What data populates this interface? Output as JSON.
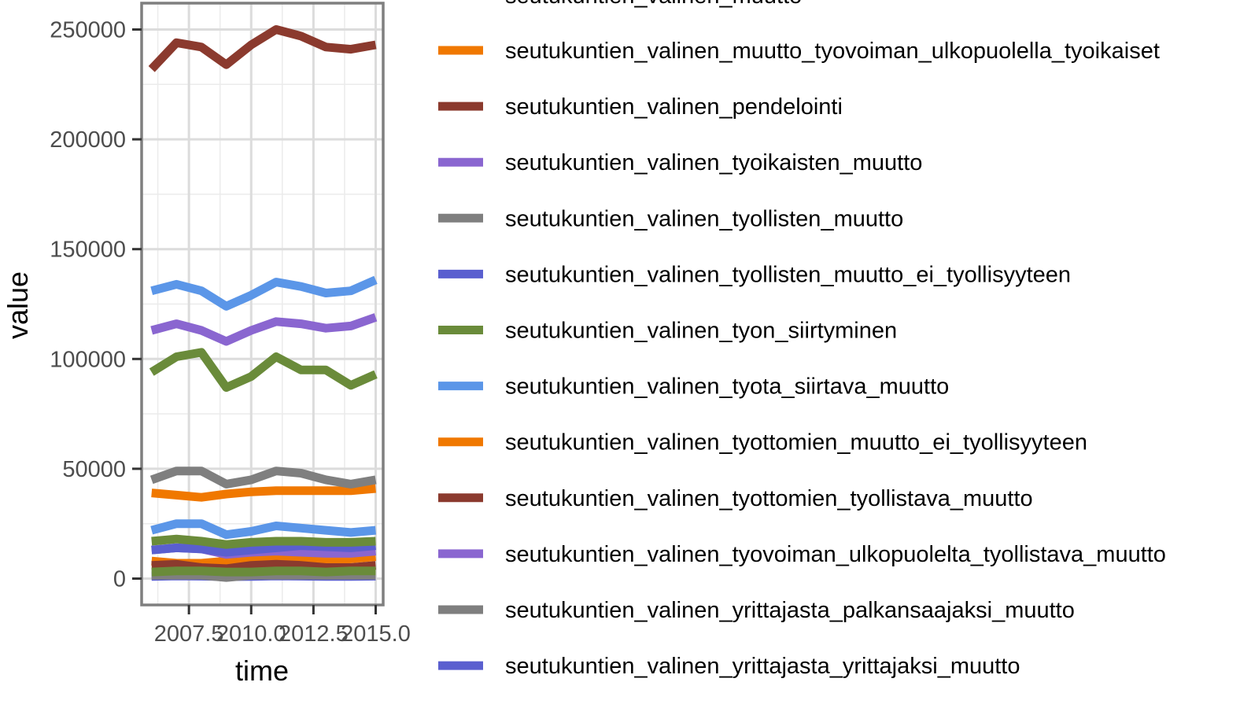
{
  "chart_data": {
    "type": "line",
    "xlabel": "time",
    "ylabel": "value",
    "xlim": [
      2005.6,
      2015.3
    ],
    "ylim": [
      -12000,
      262000
    ],
    "x_ticks": [
      7.5,
      10.0,
      12.5,
      15.0
    ],
    "x_tick_labels": [
      "2007.5",
      "2010.0",
      "2012.5",
      "2015.0"
    ],
    "y_ticks": [
      0,
      50000,
      100000,
      150000,
      200000,
      250000
    ],
    "y_tick_labels": [
      "0",
      "50000",
      "100000",
      "150000",
      "200000",
      "250000"
    ],
    "x_minor_gridlines": [
      2006.25,
      2008.75,
      2011.25,
      2013.75
    ],
    "y_minor_gridlines": [
      25000,
      75000,
      125000,
      175000,
      225000
    ],
    "grid": true,
    "legend_position": "right",
    "legend_partial_top_label": "seutukuntien_valinen_muutto",
    "x": [
      2006,
      2007,
      2008,
      2009,
      2010,
      2011,
      2012,
      2013,
      2014,
      2015
    ],
    "series": [
      {
        "name": "seutukuntien_valinen_muutto_tyovoiman_ulkopuolella_tyoikaiset",
        "color": "#f07800",
        "values": [
          39000,
          38000,
          37000,
          38500,
          39500,
          40000,
          40000,
          40000,
          40000,
          41000
        ]
      },
      {
        "name": "seutukuntien_valinen_pendelointi",
        "color": "#8b3a2e",
        "values": [
          232000,
          244000,
          242000,
          234000,
          243000,
          250000,
          247000,
          242000,
          241000,
          243000
        ]
      },
      {
        "name": "seutukuntien_valinen_tyoikaisten_muutto",
        "color": "#8a66d0",
        "values": [
          113000,
          116000,
          113000,
          108000,
          113000,
          117000,
          116000,
          114000,
          115000,
          119000
        ]
      },
      {
        "name": "seutukuntien_valinen_tyollisten_muutto",
        "color": "#7f7f7f",
        "values": [
          45000,
          49000,
          49000,
          43000,
          45000,
          49000,
          48000,
          45000,
          43000,
          45000
        ]
      },
      {
        "name": "seutukuntien_valinen_tyollisten_muutto_ei_tyollisyyteen",
        "color": "#5a5fcf",
        "values": [
          1000,
          1200,
          1100,
          900,
          1000,
          1200,
          1100,
          1000,
          1000,
          1100
        ]
      },
      {
        "name": "seutukuntien_valinen_tyon_siirtyminen",
        "color": "#6a8b3a",
        "values": [
          94000,
          101000,
          103000,
          87000,
          92000,
          101000,
          95000,
          95000,
          88000,
          93000
        ]
      },
      {
        "name": "seutukuntien_valinen_tyota_siirtava_muutto",
        "color": "#5b96e8",
        "values": [
          131000,
          134000,
          131000,
          124000,
          129000,
          135000,
          133000,
          130000,
          131000,
          136000
        ]
      },
      {
        "name": "seutukuntien_valinen_tyottomien_muutto_ei_tyollisyyteen",
        "color": "#f07800",
        "values": [
          8000,
          7000,
          7000,
          8000,
          9000,
          10000,
          9000,
          8000,
          9000,
          10000
        ]
      },
      {
        "name": "seutukuntien_valinen_tyottomien_tyollistava_muutto",
        "color": "#8b3a2e",
        "values": [
          6000,
          6500,
          5000,
          4500,
          6000,
          6500,
          6000,
          5000,
          5000,
          6000
        ]
      },
      {
        "name": "seutukuntien_valinen_tyovoiman_ulkopuolelta_tyollistava_muutto",
        "color": "#8a66d0",
        "values": [
          13000,
          14000,
          13500,
          11000,
          12000,
          12500,
          12000,
          11500,
          11500,
          12500
        ]
      },
      {
        "name": "seutukuntien_valinen_yrittajasta_palkansaajaksi_muutto",
        "color": "#7f7f7f",
        "values": [
          1500,
          1500,
          1500,
          500,
          1500,
          1500,
          1500,
          1500,
          1500,
          1500
        ]
      },
      {
        "name": "seutukuntien_valinen_yrittajasta_yrittajaksi_muutto",
        "color": "#5a5fcf",
        "values": [
          13000,
          14000,
          13500,
          12000,
          13000,
          14000,
          15000,
          14500,
          14000,
          15000
        ]
      },
      {
        "name": "",
        "color": "#6a8b3a",
        "values": [
          17000,
          18000,
          17000,
          15500,
          16500,
          17000,
          17000,
          16500,
          16500,
          17000
        ]
      },
      {
        "name": "",
        "color": "#5b96e8",
        "values": [
          22000,
          25000,
          25000,
          20000,
          21500,
          24000,
          23000,
          22000,
          21000,
          22000
        ]
      },
      {
        "name": "",
        "color": "#6a8b3a",
        "values": [
          3000,
          3500,
          3500,
          3000,
          3000,
          3500,
          3500,
          3000,
          3500,
          3500
        ]
      }
    ]
  }
}
